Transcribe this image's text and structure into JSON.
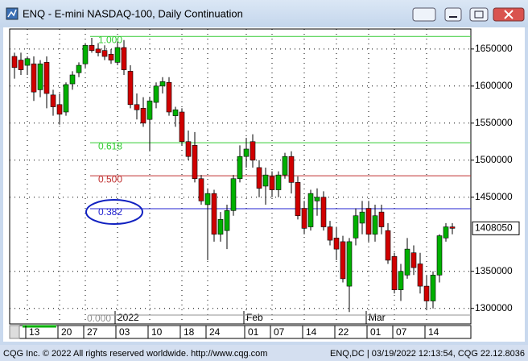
{
  "window_title": "ENQ - E-mini NASDAQ-100, Daily Continuation",
  "footer_left": "CQG Inc. © 2022 All rights reserved worldwide. http://www.cqg.com",
  "footer_right": "ENQ,DC | 03/19/2022 12:13:54, CQG 22.12.8036",
  "chart_data": {
    "type": "candlestick",
    "categories": [
      null,
      null,
      "13",
      null,
      null,
      null,
      null,
      "20",
      null,
      null,
      null,
      "27",
      null,
      null,
      null,
      null,
      "03",
      null,
      null,
      null,
      null,
      "10",
      null,
      null,
      null,
      null,
      "18",
      null,
      null,
      null,
      "24",
      null,
      null,
      null,
      null,
      null,
      "01",
      null,
      null,
      null,
      "07",
      null,
      null,
      null,
      null,
      "14",
      null,
      null,
      null,
      null,
      "22",
      null,
      null,
      null,
      null,
      "01",
      null,
      null,
      null,
      "07",
      null,
      null,
      null,
      null,
      "14",
      null,
      null,
      null,
      null
    ],
    "month_labels": [
      "2022",
      "Feb",
      "Mar"
    ],
    "open": [
      1640000,
      1635000,
      1628000,
      1630000,
      1595000,
      1632000,
      1588000,
      1575000,
      1565000,
      1603000,
      1618000,
      1630000,
      1655000,
      1650000,
      1648000,
      1643000,
      1632000,
      1652000,
      1620000,
      1575000,
      1570000,
      1555000,
      1578000,
      1600000,
      1605000,
      1560000,
      1565000,
      1525000,
      1520000,
      1475000,
      1440000,
      1455000,
      1400000,
      1405000,
      1432000,
      1475000,
      1505000,
      1525000,
      1490000,
      1465000,
      1478000,
      1460000,
      1480000,
      1505000,
      1470000,
      1435000,
      1410000,
      1445000,
      1450000,
      1410000,
      1395000,
      1390000,
      1330000,
      1395000,
      1415000,
      1435000,
      1400000,
      1430000,
      1405000,
      1370000,
      1325000,
      1345000,
      1375000,
      1360000,
      1330000,
      1310000,
      1345000,
      1395000,
      1410000
    ],
    "high": [
      1645000,
      1645000,
      1640000,
      1640000,
      1635000,
      1640000,
      1595000,
      1590000,
      1605000,
      1620000,
      1632000,
      1658000,
      1665000,
      1658000,
      1655000,
      1650000,
      1660000,
      1662000,
      1628000,
      1590000,
      1585000,
      1585000,
      1605000,
      1612000,
      1612000,
      1572000,
      1570000,
      1540000,
      1538000,
      1480000,
      1462000,
      1460000,
      1430000,
      1440000,
      1480000,
      1520000,
      1530000,
      1535000,
      1500000,
      1490000,
      1485000,
      1485000,
      1510000,
      1512000,
      1478000,
      1445000,
      1460000,
      1462000,
      1458000,
      1418000,
      1410000,
      1398000,
      1395000,
      1435000,
      1445000,
      1445000,
      1440000,
      1440000,
      1415000,
      1375000,
      1360000,
      1395000,
      1385000,
      1375000,
      1345000,
      1350000,
      1400000,
      1415000,
      1415000
    ],
    "low": [
      1610000,
      1615000,
      1615000,
      1580000,
      1585000,
      1570000,
      1560000,
      1548000,
      1560000,
      1595000,
      1612000,
      1625000,
      1645000,
      1640000,
      1635000,
      1630000,
      1628000,
      1615000,
      1570000,
      1555000,
      1545000,
      1512000,
      1570000,
      1590000,
      1560000,
      1545000,
      1520000,
      1500000,
      1470000,
      1440000,
      1365000,
      1390000,
      1390000,
      1380000,
      1425000,
      1470000,
      1490000,
      1490000,
      1450000,
      1440000,
      1450000,
      1450000,
      1475000,
      1455000,
      1420000,
      1400000,
      1405000,
      1425000,
      1405000,
      1385000,
      1365000,
      1335000,
      1295000,
      1385000,
      1400000,
      1390000,
      1390000,
      1400000,
      1360000,
      1320000,
      1310000,
      1340000,
      1345000,
      1320000,
      1298000,
      1300000,
      1335000,
      1390000,
      1400000
    ],
    "close": [
      1625000,
      1622000,
      1637000,
      1592000,
      1630000,
      1590000,
      1572000,
      1562000,
      1602000,
      1615000,
      1628000,
      1655000,
      1648000,
      1645000,
      1640000,
      1635000,
      1652000,
      1622000,
      1575000,
      1568000,
      1550000,
      1580000,
      1600000,
      1606000,
      1565000,
      1568000,
      1525000,
      1505000,
      1475000,
      1445000,
      1455000,
      1400000,
      1420000,
      1432000,
      1475000,
      1505000,
      1515000,
      1500000,
      1462000,
      1480000,
      1460000,
      1480000,
      1505000,
      1470000,
      1425000,
      1408000,
      1455000,
      1450000,
      1410000,
      1392000,
      1380000,
      1340000,
      1390000,
      1425000,
      1430000,
      1400000,
      1425000,
      1410000,
      1365000,
      1325000,
      1350000,
      1380000,
      1355000,
      1330000,
      1310000,
      1345000,
      1398000,
      1410000,
      1408050
    ],
    "up_color": "#00b000",
    "down_color": "#d00000",
    "ylim": [
      1279000,
      1677000
    ],
    "yticks": [
      1300000,
      1350000,
      1450000,
      1500000,
      1550000,
      1600000,
      1650000
    ],
    "grid": true,
    "fib_levels": [
      {
        "label": "1.000",
        "value": 1667000,
        "color": "#33cc33"
      },
      {
        "label": "0.618",
        "value": 1523500,
        "color": "#33cc33"
      },
      {
        "label": "0.500",
        "value": 1479000,
        "color": "#c03030"
      },
      {
        "label": "0.382",
        "value": 1434500,
        "color": "#2020d0"
      },
      {
        "label": "0.000",
        "value": 1291000,
        "color": "#909090"
      }
    ]
  }
}
